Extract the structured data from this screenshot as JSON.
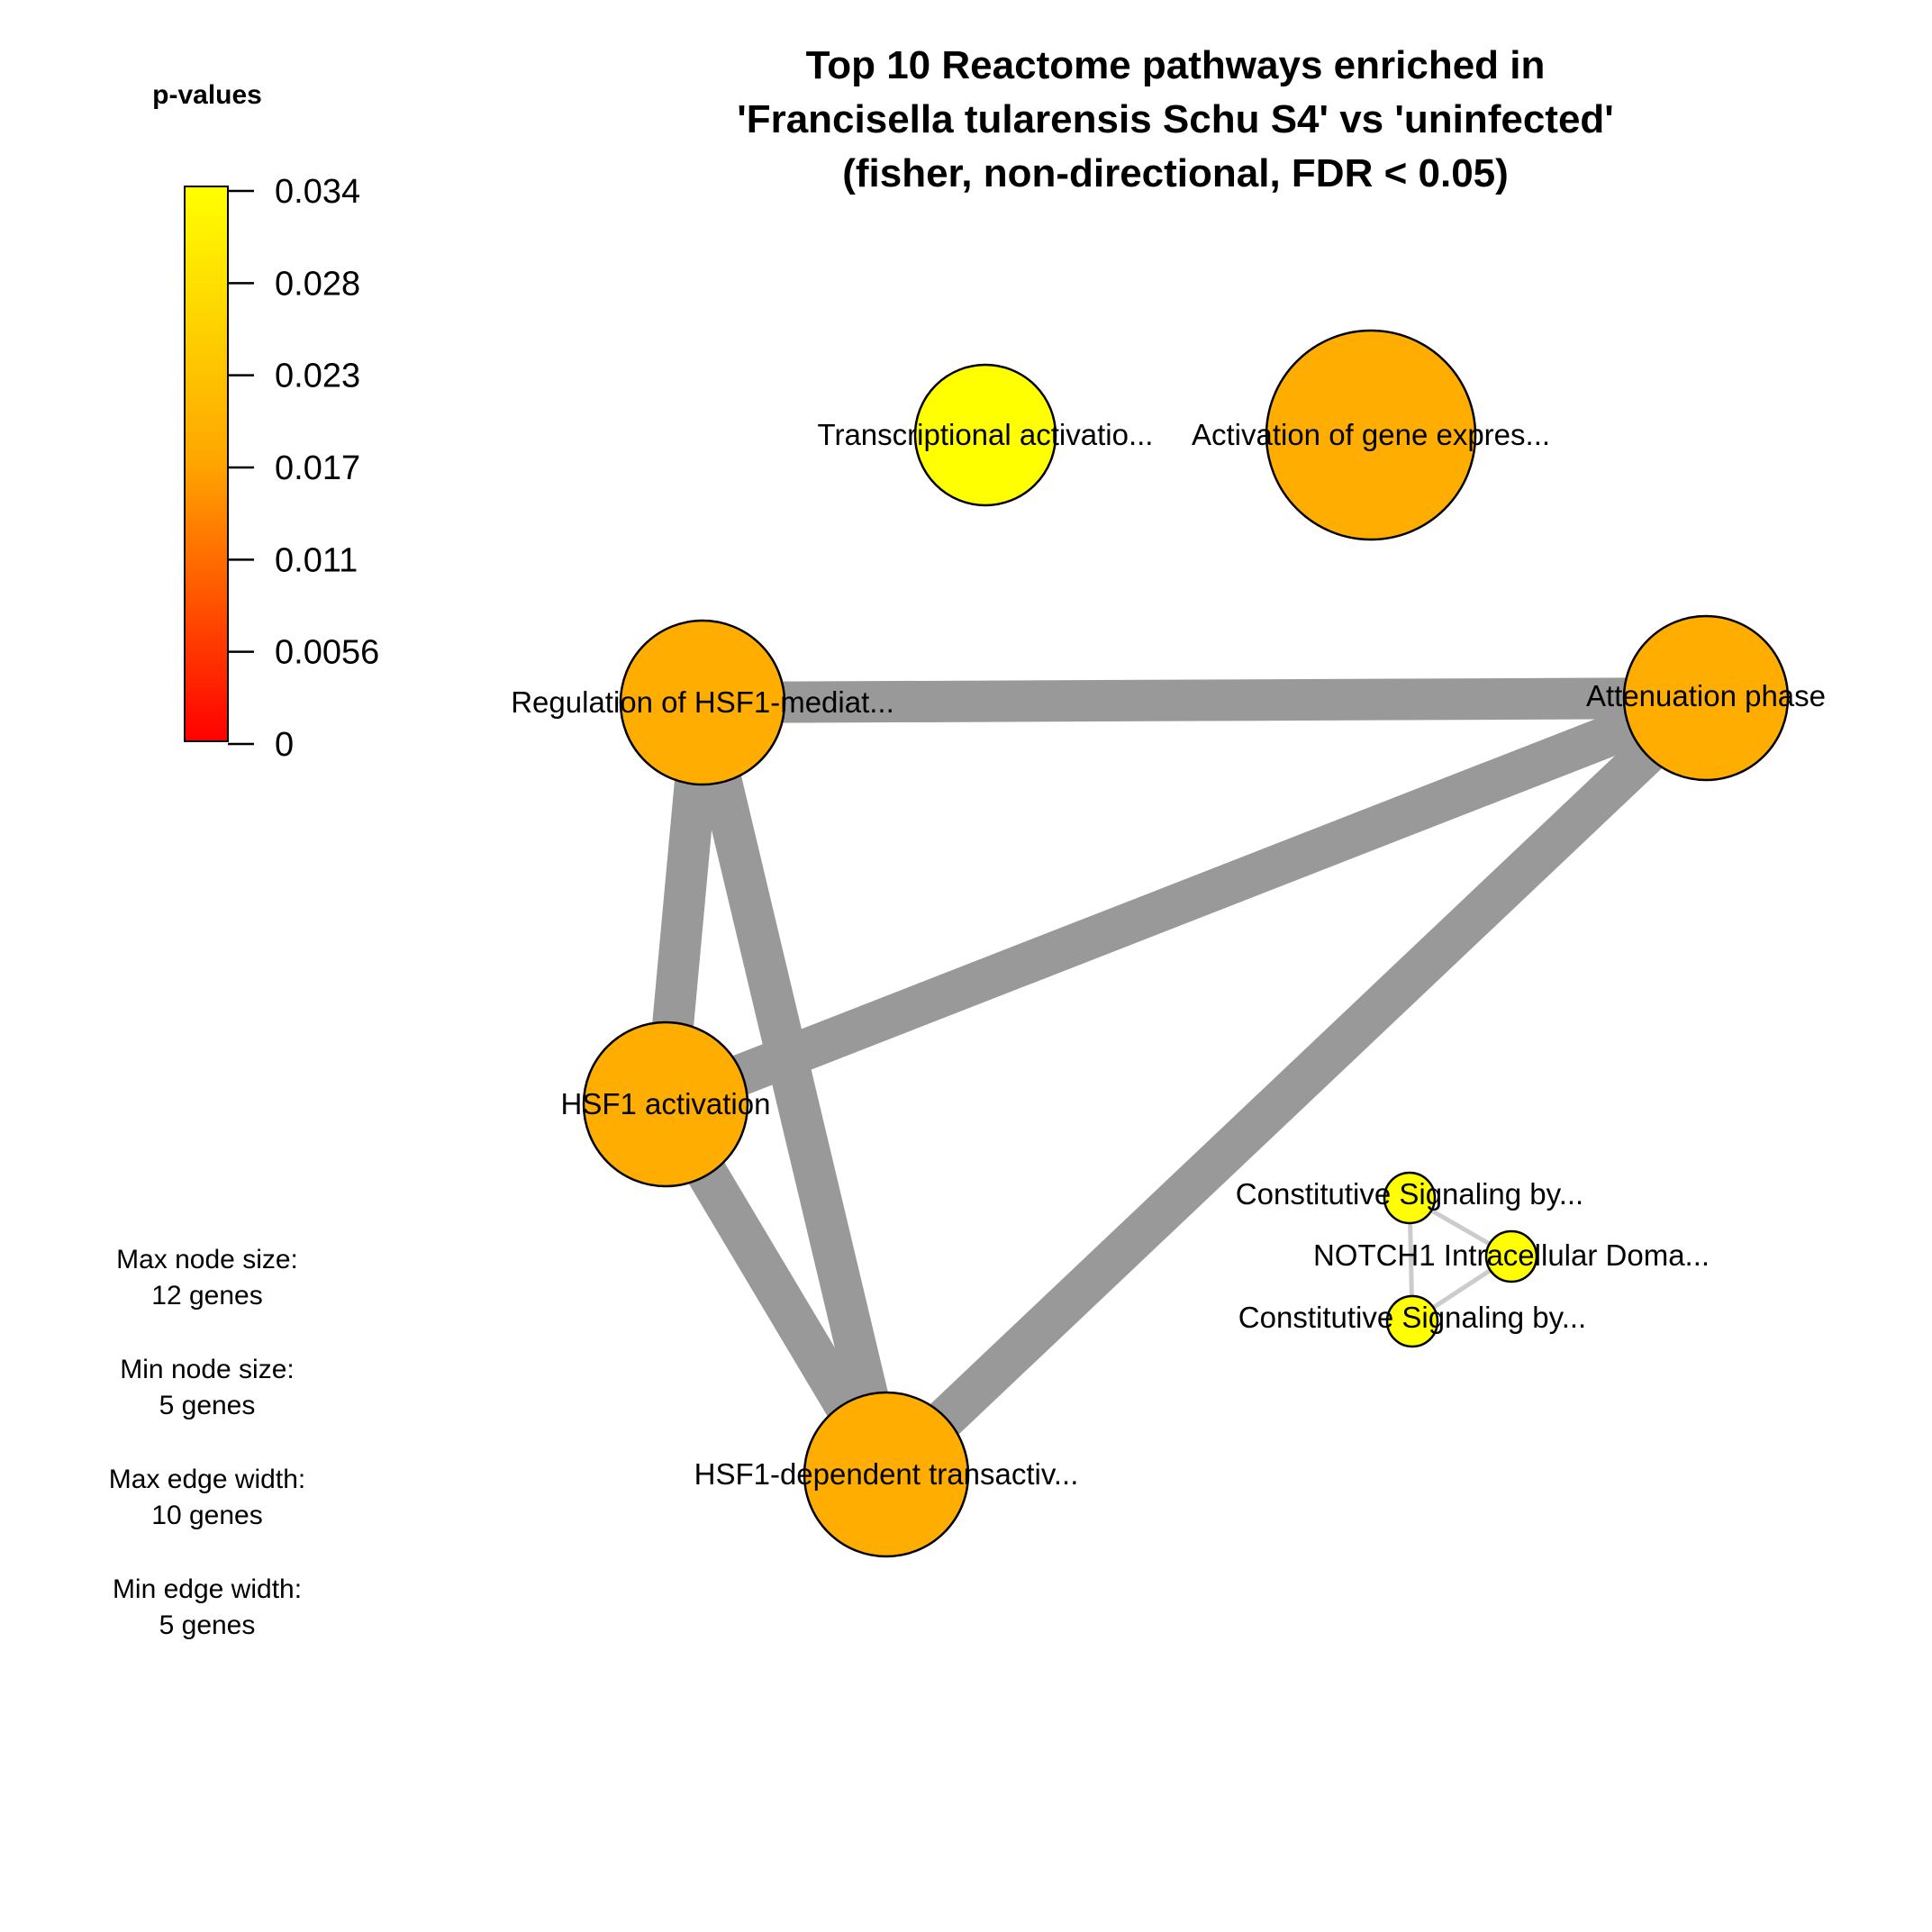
{
  "title": {
    "line1": "Top 10 Reactome pathways enriched in",
    "line2": "'Francisella tularensis Schu S4' vs 'uninfected'",
    "line3": "(fisher, non-directional, FDR < 0.05)"
  },
  "legend": {
    "title": "p-values",
    "ticks": [
      "0.034",
      "0.028",
      "0.023",
      "0.017",
      "0.011",
      "0.0056",
      "0"
    ],
    "gradient_colors": {
      "top": "#ffff00",
      "middle": "#ffa500",
      "bottom": "#ff0000"
    }
  },
  "info": {
    "max_node_label": "Max node size:",
    "max_node_value": "12 genes",
    "min_node_label": "Min node size:",
    "min_node_value": "5 genes",
    "max_edge_label": "Max edge width:",
    "max_edge_value": "10 genes",
    "min_edge_label": "Min edge width:",
    "min_edge_value": "5 genes"
  },
  "colors": {
    "orange_node": "#ffad00",
    "yellow_node": "#ffff00",
    "heavy_edge": "#999999",
    "light_edge": "#cccccc",
    "node_stroke": "#000000"
  },
  "nodes": [
    {
      "id": "transcriptional",
      "label": "Transcriptional activatio...",
      "color": "#ffff00"
    },
    {
      "id": "activation_gene",
      "label": "Activation of gene expres...",
      "color": "#ffad00"
    },
    {
      "id": "regulation_hsf1",
      "label": "Regulation of HSF1-mediat...",
      "color": "#ffad00"
    },
    {
      "id": "attenuation",
      "label": "Attenuation phase",
      "color": "#ffad00"
    },
    {
      "id": "hsf1_activation",
      "label": "HSF1 activation",
      "color": "#ffad00"
    },
    {
      "id": "hsf1_dependent",
      "label": "HSF1-dependent transactiv...",
      "color": "#ffad00"
    },
    {
      "id": "constitutive_1",
      "label": "Constitutive Signaling by...",
      "color": "#ffff00"
    },
    {
      "id": "notch1",
      "label": "NOTCH1 Intracellular Doma...",
      "color": "#ffff00"
    },
    {
      "id": "constitutive_2",
      "label": "Constitutive Signaling by...",
      "color": "#ffff00"
    }
  ],
  "edges": [
    {
      "source": "regulation_hsf1",
      "target": "attenuation",
      "style": "heavy"
    },
    {
      "source": "regulation_hsf1",
      "target": "hsf1_activation",
      "style": "heavy"
    },
    {
      "source": "regulation_hsf1",
      "target": "hsf1_dependent",
      "style": "heavy"
    },
    {
      "source": "attenuation",
      "target": "hsf1_activation",
      "style": "heavy"
    },
    {
      "source": "attenuation",
      "target": "hsf1_dependent",
      "style": "heavy"
    },
    {
      "source": "hsf1_activation",
      "target": "hsf1_dependent",
      "style": "heavy"
    },
    {
      "source": "constitutive_1",
      "target": "notch1",
      "style": "light"
    },
    {
      "source": "constitutive_1",
      "target": "constitutive_2",
      "style": "light"
    },
    {
      "source": "notch1",
      "target": "constitutive_2",
      "style": "light"
    }
  ]
}
